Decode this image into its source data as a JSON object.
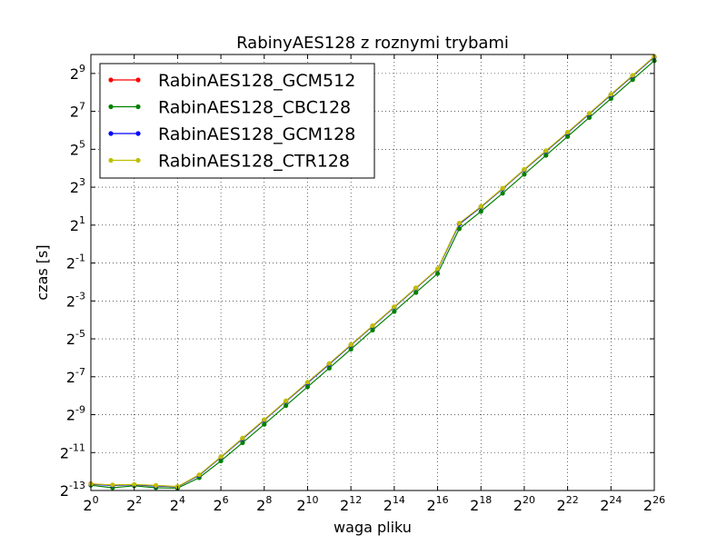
{
  "chart_data": {
    "type": "line",
    "title": "RabinyAES128 z roznymi trybami",
    "xlabel": "waga pliku",
    "ylabel": "czas [s]",
    "x_scale": "log2",
    "y_scale": "log2",
    "xlim": [
      1,
      67108864
    ],
    "ylim": [
      0.0001220703125,
      1024
    ],
    "x_ticks": [
      1,
      4,
      16,
      64,
      256,
      1024,
      4096,
      16384,
      65536,
      262144,
      1048576,
      4194304,
      16777216,
      67108864
    ],
    "x_tick_labels": [
      {
        "base": "2",
        "exp": "0"
      },
      {
        "base": "2",
        "exp": "2"
      },
      {
        "base": "2",
        "exp": "4"
      },
      {
        "base": "2",
        "exp": "6"
      },
      {
        "base": "2",
        "exp": "8"
      },
      {
        "base": "2",
        "exp": "10"
      },
      {
        "base": "2",
        "exp": "12"
      },
      {
        "base": "2",
        "exp": "14"
      },
      {
        "base": "2",
        "exp": "16"
      },
      {
        "base": "2",
        "exp": "18"
      },
      {
        "base": "2",
        "exp": "20"
      },
      {
        "base": "2",
        "exp": "22"
      },
      {
        "base": "2",
        "exp": "24"
      },
      {
        "base": "2",
        "exp": "26"
      }
    ],
    "y_ticks": [
      0.0001220703125,
      0.00048828125,
      0.001953125,
      0.0078125,
      0.03125,
      0.125,
      0.5,
      2,
      8,
      32,
      128,
      512
    ],
    "y_tick_labels": [
      {
        "base": "2",
        "exp": "-13"
      },
      {
        "base": "2",
        "exp": "-11"
      },
      {
        "base": "2",
        "exp": "-9"
      },
      {
        "base": "2",
        "exp": "-7"
      },
      {
        "base": "2",
        "exp": "-5"
      },
      {
        "base": "2",
        "exp": "-3"
      },
      {
        "base": "2",
        "exp": "-1"
      },
      {
        "base": "2",
        "exp": "1"
      },
      {
        "base": "2",
        "exp": "3"
      },
      {
        "base": "2",
        "exp": "5"
      },
      {
        "base": "2",
        "exp": "7"
      },
      {
        "base": "2",
        "exp": "9"
      }
    ],
    "grid": true,
    "legend_position": "top-left",
    "x": [
      1,
      2,
      4,
      8,
      16,
      32,
      64,
      128,
      256,
      512,
      1024,
      2048,
      4096,
      8192,
      16384,
      32768,
      65536,
      131072,
      262144,
      524288,
      1048576,
      2097152,
      4194304,
      8388608,
      16777216,
      33554432,
      67108864
    ],
    "series": [
      {
        "name": "RabinAES128_GCM512",
        "color": "#ff0000",
        "values": [
          0.000156,
          0.000148,
          0.000151,
          0.000145,
          0.00014,
          0.000215,
          0.000415,
          0.00082,
          0.00161,
          0.0032,
          0.0063,
          0.0125,
          0.025,
          0.05,
          0.1,
          0.2,
          0.4,
          2.1,
          3.9,
          7.6,
          15.2,
          30.0,
          59.0,
          118.0,
          236.0,
          472.0,
          944.0
        ]
      },
      {
        "name": "RabinAES128_CBC128",
        "color": "#008000",
        "values": [
          0.000148,
          0.000135,
          0.000145,
          0.000135,
          0.000133,
          0.000195,
          0.00036,
          0.0007,
          0.00137,
          0.00272,
          0.0054,
          0.0107,
          0.0214,
          0.043,
          0.085,
          0.17,
          0.34,
          1.75,
          3.3,
          6.4,
          12.8,
          25.6,
          51.0,
          102.0,
          204.0,
          408.0,
          816.0
        ]
      },
      {
        "name": "RabinAES128_GCM128",
        "color": "#0000ff",
        "values": [
          0.000153,
          0.000147,
          0.00015,
          0.000144,
          0.00014,
          0.000213,
          0.000413,
          0.00081,
          0.0016,
          0.00318,
          0.00625,
          0.0124,
          0.0249,
          0.0497,
          0.0995,
          0.199,
          0.398,
          2.08,
          3.88,
          7.55,
          15.1,
          29.8,
          58.6,
          117.0,
          234.0,
          468.0,
          936.0
        ]
      },
      {
        "name": "RabinAES128_CTR128",
        "color": "#bfbf00",
        "values": [
          0.000155,
          0.00015,
          0.000152,
          0.000147,
          0.000141,
          0.000217,
          0.00042,
          0.00083,
          0.00163,
          0.00324,
          0.0064,
          0.0127,
          0.0253,
          0.0505,
          0.101,
          0.202,
          0.404,
          2.15,
          3.95,
          7.7,
          15.4,
          30.4,
          59.8,
          119.5,
          239.0,
          478.0,
          956.0
        ]
      }
    ]
  }
}
